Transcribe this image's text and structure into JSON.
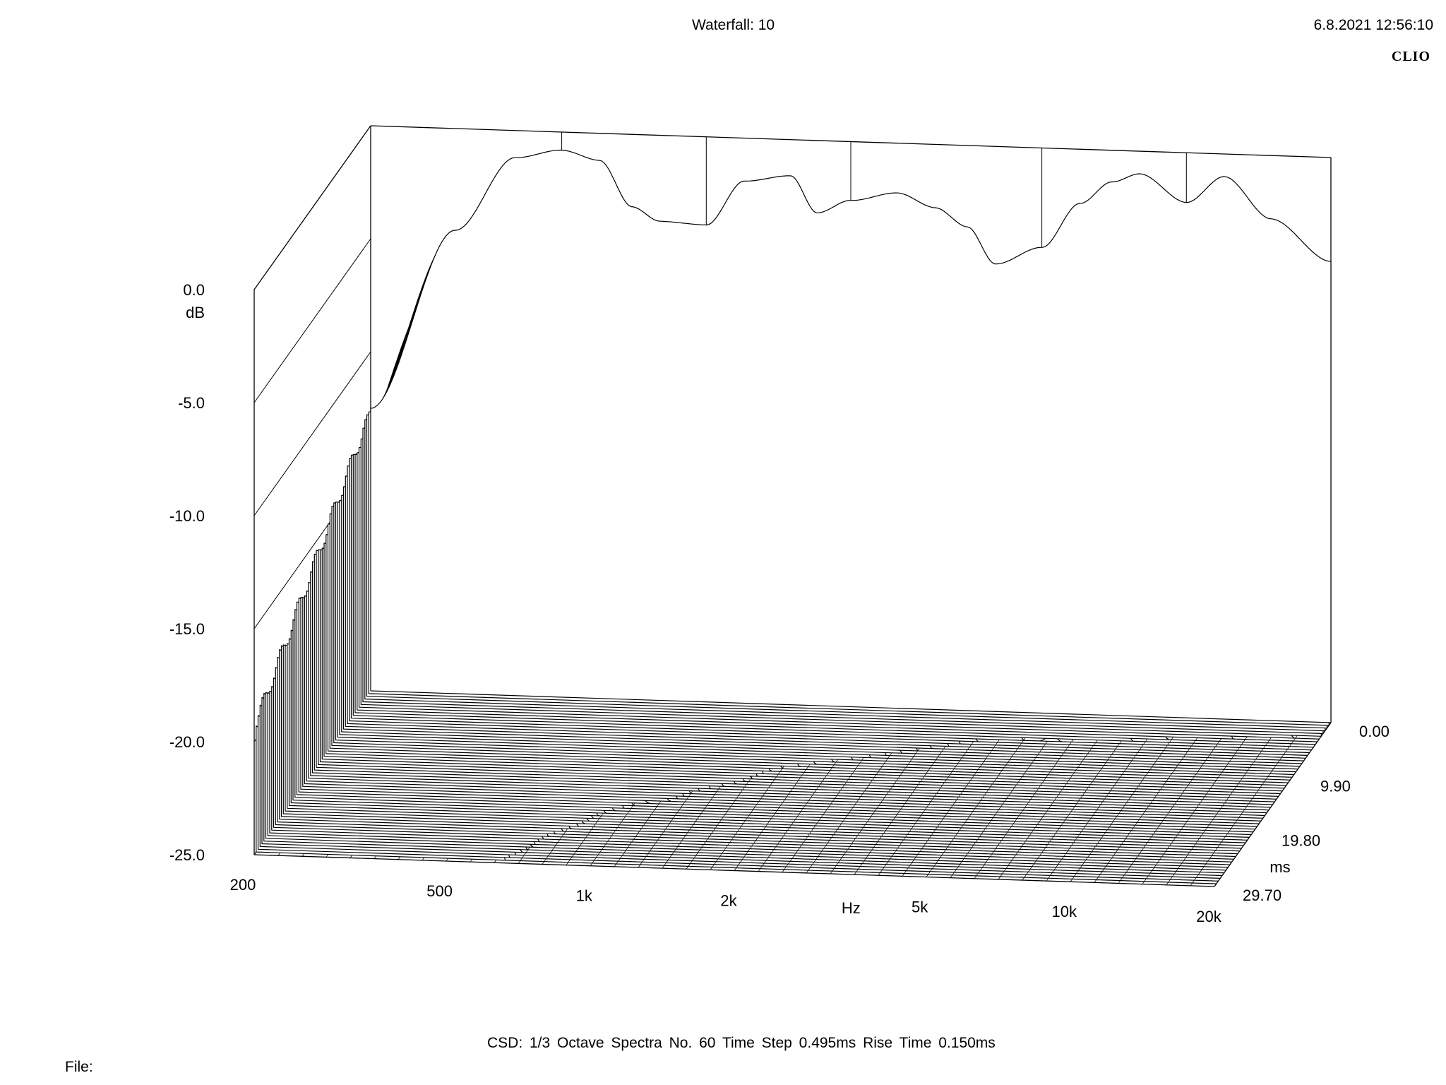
{
  "header": {
    "title": "Waterfall: 10",
    "datetime": "6.8.2021 12:56:10",
    "brand": "CLIO"
  },
  "footer": {
    "info": "CSD:   1/3 Octave   Spectra No. 60   Time Step 0.495ms   Rise Time 0.150ms",
    "file_label": "File:"
  },
  "chart_data": {
    "type": "waterfall",
    "title": "Waterfall: 10",
    "x_axis": {
      "label": "Hz",
      "scale": "log",
      "range": [
        200,
        20000
      ],
      "ticks": [
        "200",
        "500",
        "1k",
        "2k",
        "5k",
        "10k",
        "20k"
      ]
    },
    "y_axis": {
      "label": "dB",
      "range": [
        -25,
        0
      ],
      "ticks": [
        "0.0",
        "-5.0",
        "-10.0",
        "-15.0",
        "-20.0",
        "-25.0"
      ]
    },
    "z_axis": {
      "label": "ms",
      "range": [
        0,
        29.7
      ],
      "ticks": [
        "0.00",
        "9.90",
        "19.80",
        "29.70"
      ]
    },
    "spectra_count": 60,
    "time_step_ms": 0.495,
    "rise_time_ms": 0.15,
    "smoothing": "1/3 Octave",
    "first_spectrum_db": {
      "freq_hz": [
        200,
        300,
        400,
        500,
        600,
        700,
        800,
        1000,
        1200,
        1500,
        1700,
        2000,
        2500,
        3000,
        3500,
        4000,
        5000,
        6000,
        7000,
        8000,
        10000,
        12000,
        15000,
        20000
      ],
      "db": [
        -12.5,
        -4.5,
        -1.2,
        -0.8,
        -1.2,
        -3.2,
        -3.8,
        -3.9,
        -1.9,
        -1.6,
        -3.2,
        -2.6,
        -2.2,
        -2.8,
        -3.6,
        -5.2,
        -4.4,
        -2.4,
        -1.4,
        -1.0,
        -2.2,
        -1.0,
        -2.8,
        -4.6
      ]
    }
  }
}
